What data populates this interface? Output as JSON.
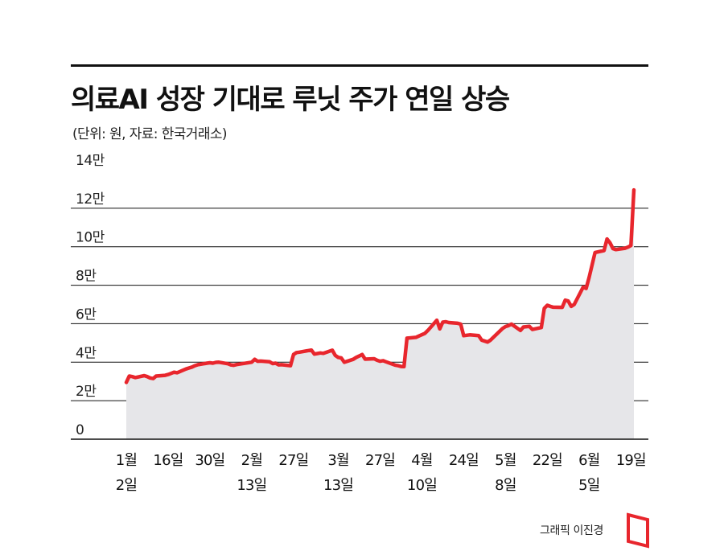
{
  "header": {
    "title": "의료AI 성장 기대로 루닛 주가 연일 상승",
    "subtitle": "(단위: 원, 자료: 한국거래소)"
  },
  "footer": {
    "credit": "그래픽 이진경"
  },
  "colors": {
    "line": "#e8262d",
    "area": "#e6e6e9",
    "grid": "#111111",
    "logo": "#e8262d"
  },
  "icons": {
    "logo": "logo-mark-icon"
  },
  "chart_data": {
    "type": "area",
    "y_unit": "원",
    "ylim": [
      0,
      140000
    ],
    "y_ticks": [
      {
        "value": 0,
        "label": "0"
      },
      {
        "value": 20000,
        "label": "2만"
      },
      {
        "value": 40000,
        "label": "4만"
      },
      {
        "value": 60000,
        "label": "6만"
      },
      {
        "value": 80000,
        "label": "8만"
      },
      {
        "value": 100000,
        "label": "10만"
      },
      {
        "value": 120000,
        "label": "12만"
      },
      {
        "value": 140000,
        "label": "14만"
      }
    ],
    "x_ticks": [
      {
        "date": "2024-01-02",
        "line1": "1월",
        "line2": "2일"
      },
      {
        "date": "2024-01-16",
        "line1": "16일",
        "line2": ""
      },
      {
        "date": "2024-01-30",
        "line1": "30일",
        "line2": ""
      },
      {
        "date": "2024-02-13",
        "line1": "2월",
        "line2": "13일"
      },
      {
        "date": "2024-02-27",
        "line1": "27일",
        "line2": ""
      },
      {
        "date": "2024-03-13",
        "line1": "3월",
        "line2": "13일"
      },
      {
        "date": "2024-03-27",
        "line1": "27일",
        "line2": ""
      },
      {
        "date": "2024-04-10",
        "line1": "4월",
        "line2": "10일"
      },
      {
        "date": "2024-04-24",
        "line1": "24일",
        "line2": ""
      },
      {
        "date": "2024-05-08",
        "line1": "5월",
        "line2": "8일"
      },
      {
        "date": "2024-05-22",
        "line1": "22일",
        "line2": ""
      },
      {
        "date": "2024-06-05",
        "line1": "6월",
        "line2": "5일"
      },
      {
        "date": "2024-06-19",
        "line1": "19일",
        "line2": ""
      }
    ],
    "grid": true,
    "grid_axis": "y",
    "legend": "none",
    "series": [
      {
        "points": [
          [
            "2024-01-02",
            29500
          ],
          [
            "2024-01-03",
            32800
          ],
          [
            "2024-01-04",
            32500
          ],
          [
            "2024-01-05",
            32000
          ],
          [
            "2024-01-08",
            33000
          ],
          [
            "2024-01-09",
            32500
          ],
          [
            "2024-01-10",
            31800
          ],
          [
            "2024-01-11",
            31500
          ],
          [
            "2024-01-12",
            32800
          ],
          [
            "2024-01-15",
            33200
          ],
          [
            "2024-01-16",
            33600
          ],
          [
            "2024-01-17",
            34200
          ],
          [
            "2024-01-18",
            34800
          ],
          [
            "2024-01-19",
            34500
          ],
          [
            "2024-01-22",
            36500
          ],
          [
            "2024-01-23",
            37000
          ],
          [
            "2024-01-24",
            37500
          ],
          [
            "2024-01-25",
            38200
          ],
          [
            "2024-01-26",
            38700
          ],
          [
            "2024-01-29",
            39500
          ],
          [
            "2024-01-30",
            39700
          ],
          [
            "2024-01-31",
            39500
          ],
          [
            "2024-02-01",
            39900
          ],
          [
            "2024-02-02",
            40000
          ],
          [
            "2024-02-05",
            39200
          ],
          [
            "2024-02-06",
            38600
          ],
          [
            "2024-02-07",
            38400
          ],
          [
            "2024-02-08",
            38800
          ],
          [
            "2024-02-13",
            40000
          ],
          [
            "2024-02-14",
            41500
          ],
          [
            "2024-02-15",
            40500
          ],
          [
            "2024-02-16",
            40600
          ],
          [
            "2024-02-19",
            40200
          ],
          [
            "2024-02-20",
            39300
          ],
          [
            "2024-02-21",
            39500
          ],
          [
            "2024-02-22",
            38600
          ],
          [
            "2024-02-23",
            38700
          ],
          [
            "2024-02-26",
            38200
          ],
          [
            "2024-02-27",
            44000
          ],
          [
            "2024-02-28",
            45000
          ],
          [
            "2024-02-29",
            45200
          ],
          [
            "2024-03-04",
            46300
          ],
          [
            "2024-03-05",
            44200
          ],
          [
            "2024-03-06",
            44500
          ],
          [
            "2024-03-07",
            44800
          ],
          [
            "2024-03-08",
            44600
          ],
          [
            "2024-03-11",
            46200
          ],
          [
            "2024-03-12",
            43500
          ],
          [
            "2024-03-13",
            42500
          ],
          [
            "2024-03-14",
            42200
          ],
          [
            "2024-03-15",
            40000
          ],
          [
            "2024-03-18",
            41500
          ],
          [
            "2024-03-19",
            42500
          ],
          [
            "2024-03-20",
            43200
          ],
          [
            "2024-03-21",
            44000
          ],
          [
            "2024-03-22",
            41600
          ],
          [
            "2024-03-25",
            41800
          ],
          [
            "2024-03-26",
            41000
          ],
          [
            "2024-03-27",
            40500
          ],
          [
            "2024-03-28",
            40800
          ],
          [
            "2024-03-29",
            40200
          ],
          [
            "2024-04-01",
            38500
          ],
          [
            "2024-04-02",
            38200
          ],
          [
            "2024-04-03",
            37800
          ],
          [
            "2024-04-04",
            37700
          ],
          [
            "2024-04-05",
            52500
          ],
          [
            "2024-04-08",
            52900
          ],
          [
            "2024-04-09",
            53600
          ],
          [
            "2024-04-11",
            55000
          ],
          [
            "2024-04-12",
            56500
          ],
          [
            "2024-04-15",
            61800
          ],
          [
            "2024-04-16",
            57300
          ],
          [
            "2024-04-17",
            60800
          ],
          [
            "2024-04-18",
            61000
          ],
          [
            "2024-04-19",
            60600
          ],
          [
            "2024-04-22",
            60200
          ],
          [
            "2024-04-23",
            59800
          ],
          [
            "2024-04-24",
            53800
          ],
          [
            "2024-04-25",
            54000
          ],
          [
            "2024-04-26",
            54200
          ],
          [
            "2024-04-29",
            53800
          ],
          [
            "2024-04-30",
            51500
          ],
          [
            "2024-05-02",
            50500
          ],
          [
            "2024-05-03",
            51500
          ],
          [
            "2024-05-07",
            57500
          ],
          [
            "2024-05-08",
            58500
          ],
          [
            "2024-05-09",
            59000
          ],
          [
            "2024-05-10",
            59800
          ],
          [
            "2024-05-13",
            56500
          ],
          [
            "2024-05-14",
            58300
          ],
          [
            "2024-05-16",
            58600
          ],
          [
            "2024-05-17",
            57000
          ],
          [
            "2024-05-20",
            58000
          ],
          [
            "2024-05-21",
            68000
          ],
          [
            "2024-05-22",
            69600
          ],
          [
            "2024-05-23",
            69000
          ],
          [
            "2024-05-24",
            68600
          ],
          [
            "2024-05-27",
            68500
          ],
          [
            "2024-05-28",
            72200
          ],
          [
            "2024-05-29",
            71800
          ],
          [
            "2024-05-30",
            69000
          ],
          [
            "2024-05-31",
            70000
          ],
          [
            "2024-06-03",
            79000
          ],
          [
            "2024-06-04",
            78300
          ],
          [
            "2024-06-05",
            84000
          ],
          [
            "2024-06-07",
            97000
          ],
          [
            "2024-06-10",
            98000
          ],
          [
            "2024-06-11",
            104000
          ],
          [
            "2024-06-12",
            102000
          ],
          [
            "2024-06-13",
            99000
          ],
          [
            "2024-06-14",
            98500
          ],
          [
            "2024-06-17",
            99200
          ],
          [
            "2024-06-18",
            99800
          ],
          [
            "2024-06-19",
            100600
          ],
          [
            "2024-06-20",
            129500
          ]
        ]
      }
    ]
  }
}
